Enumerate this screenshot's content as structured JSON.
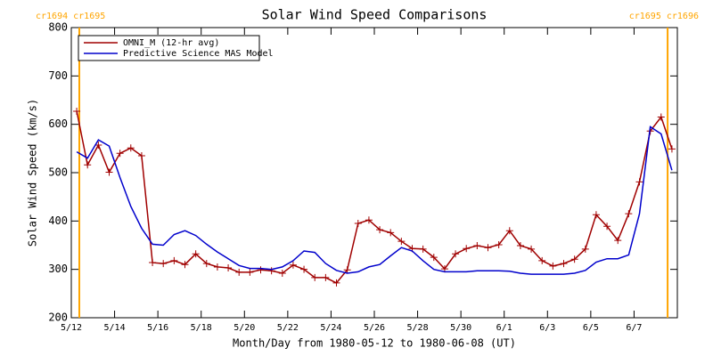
{
  "chart_data": {
    "type": "line",
    "title": "Solar Wind Speed Comparisons",
    "xlabel": "Month/Day from 1980-05-12 to 1980-06-08 (UT)",
    "ylabel": "Solar Wind Speed (km/s)",
    "xlim": [
      0,
      28
    ],
    "ylim": [
      200,
      800
    ],
    "yticks": [
      200,
      300,
      400,
      500,
      600,
      700,
      800
    ],
    "xticks": [
      {
        "value": 0,
        "label": "5/12"
      },
      {
        "value": 2,
        "label": "5/14"
      },
      {
        "value": 4,
        "label": "5/16"
      },
      {
        "value": 6,
        "label": "5/18"
      },
      {
        "value": 8,
        "label": "5/20"
      },
      {
        "value": 10,
        "label": "5/22"
      },
      {
        "value": 12,
        "label": "5/24"
      },
      {
        "value": 14,
        "label": "5/26"
      },
      {
        "value": 16,
        "label": "5/28"
      },
      {
        "value": 18,
        "label": "5/30"
      },
      {
        "value": 20,
        "label": "6/1"
      },
      {
        "value": 22,
        "label": "6/3"
      },
      {
        "value": 24,
        "label": "6/5"
      },
      {
        "value": 26,
        "label": "6/7"
      }
    ],
    "x": [
      0.25,
      0.75,
      1.25,
      1.75,
      2.25,
      2.75,
      3.25,
      3.75,
      4.25,
      4.75,
      5.25,
      5.75,
      6.25,
      6.75,
      7.25,
      7.75,
      8.25,
      8.75,
      9.25,
      9.75,
      10.25,
      10.75,
      11.25,
      11.75,
      12.25,
      12.75,
      13.25,
      13.75,
      14.25,
      14.75,
      15.25,
      15.75,
      16.25,
      16.75,
      17.25,
      17.75,
      18.25,
      18.75,
      19.25,
      19.75,
      20.25,
      20.75,
      21.25,
      21.75,
      22.25,
      22.75,
      23.25,
      23.75,
      24.25,
      24.75,
      25.25,
      25.75,
      26.25,
      26.75,
      27.25,
      27.75
    ],
    "series": [
      {
        "name": "OMNI_M (12-hr avg)",
        "color": "#a00000",
        "markers": true,
        "values": [
          627,
          516,
          557,
          501,
          540,
          551,
          535,
          314,
          312,
          318,
          310,
          332,
          312,
          305,
          303,
          294,
          294,
          299,
          297,
          292,
          309,
          300,
          283,
          283,
          272,
          299,
          395,
          402,
          382,
          376,
          358,
          343,
          342,
          325,
          301,
          332,
          343,
          349,
          345,
          351,
          380,
          349,
          342,
          318,
          307,
          312,
          321,
          342,
          413,
          389,
          360,
          415,
          481,
          586,
          615,
          549
        ]
      },
      {
        "name": "Predictive Science MAS Model",
        "color": "#0000cc",
        "markers": false,
        "values": [
          543,
          530,
          568,
          555,
          490,
          430,
          385,
          352,
          350,
          372,
          380,
          370,
          352,
          336,
          322,
          308,
          302,
          302,
          300,
          305,
          318,
          338,
          335,
          312,
          298,
          292,
          295,
          305,
          310,
          328,
          345,
          338,
          318,
          300,
          295,
          295,
          295,
          297,
          297,
          297,
          296,
          292,
          290,
          290,
          290,
          290,
          292,
          298,
          315,
          322,
          322,
          330,
          415,
          595,
          580,
          505
        ]
      }
    ],
    "vlines": {
      "x": [
        0.37,
        27.55
      ],
      "color": "#ffa500"
    },
    "annotations": [
      "cr1694 cr1695",
      "cr1695 cr1696"
    ],
    "legend": "upper left"
  }
}
